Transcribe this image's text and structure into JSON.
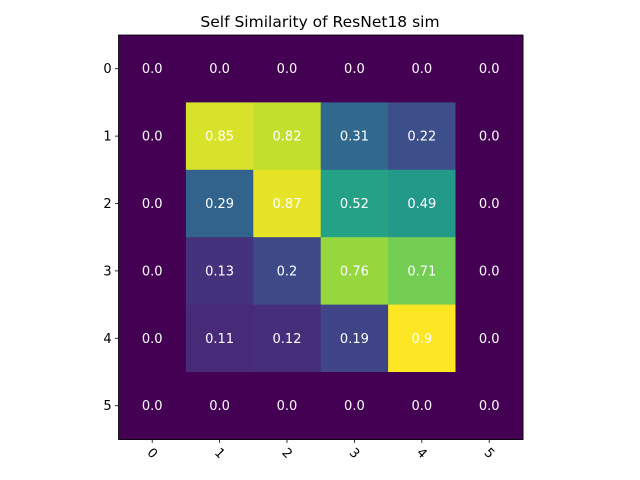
{
  "chart_data": {
    "type": "heatmap",
    "title": "Self Similarity of ResNet18 sim",
    "xlabel": "",
    "ylabel": "",
    "x_tick_labels": [
      "0",
      "1",
      "2",
      "3",
      "4",
      "5"
    ],
    "y_tick_labels": [
      "0",
      "1",
      "2",
      "3",
      "4",
      "5"
    ],
    "x_tick_rotation_deg": 45,
    "colormap": "viridis",
    "value_range": [
      0.0,
      0.9
    ],
    "values": [
      [
        0.0,
        0.0,
        0.0,
        0.0,
        0.0,
        0.0
      ],
      [
        0.0,
        0.85,
        0.82,
        0.31,
        0.22,
        0.0
      ],
      [
        0.0,
        0.29,
        0.87,
        0.52,
        0.49,
        0.0
      ],
      [
        0.0,
        0.13,
        0.2,
        0.76,
        0.71,
        0.0
      ],
      [
        0.0,
        0.11,
        0.12,
        0.19,
        0.9,
        0.0
      ],
      [
        0.0,
        0.0,
        0.0,
        0.0,
        0.0,
        0.0
      ]
    ],
    "annotations": [
      [
        "0.0",
        "0.0",
        "0.0",
        "0.0",
        "0.0",
        "0.0"
      ],
      [
        "0.0",
        "0.85",
        "0.82",
        "0.31",
        "0.22",
        "0.0"
      ],
      [
        "0.0",
        "0.29",
        "0.87",
        "0.52",
        "0.49",
        "0.0"
      ],
      [
        "0.0",
        "0.13",
        "0.2",
        "0.76",
        "0.71",
        "0.0"
      ],
      [
        "0.0",
        "0.11",
        "0.12",
        "0.19",
        "0.9",
        "0.0"
      ],
      [
        "0.0",
        "0.0",
        "0.0",
        "0.0",
        "0.0",
        "0.0"
      ]
    ],
    "annotation_color": "#ffffff",
    "grid": false,
    "legend": "none"
  }
}
